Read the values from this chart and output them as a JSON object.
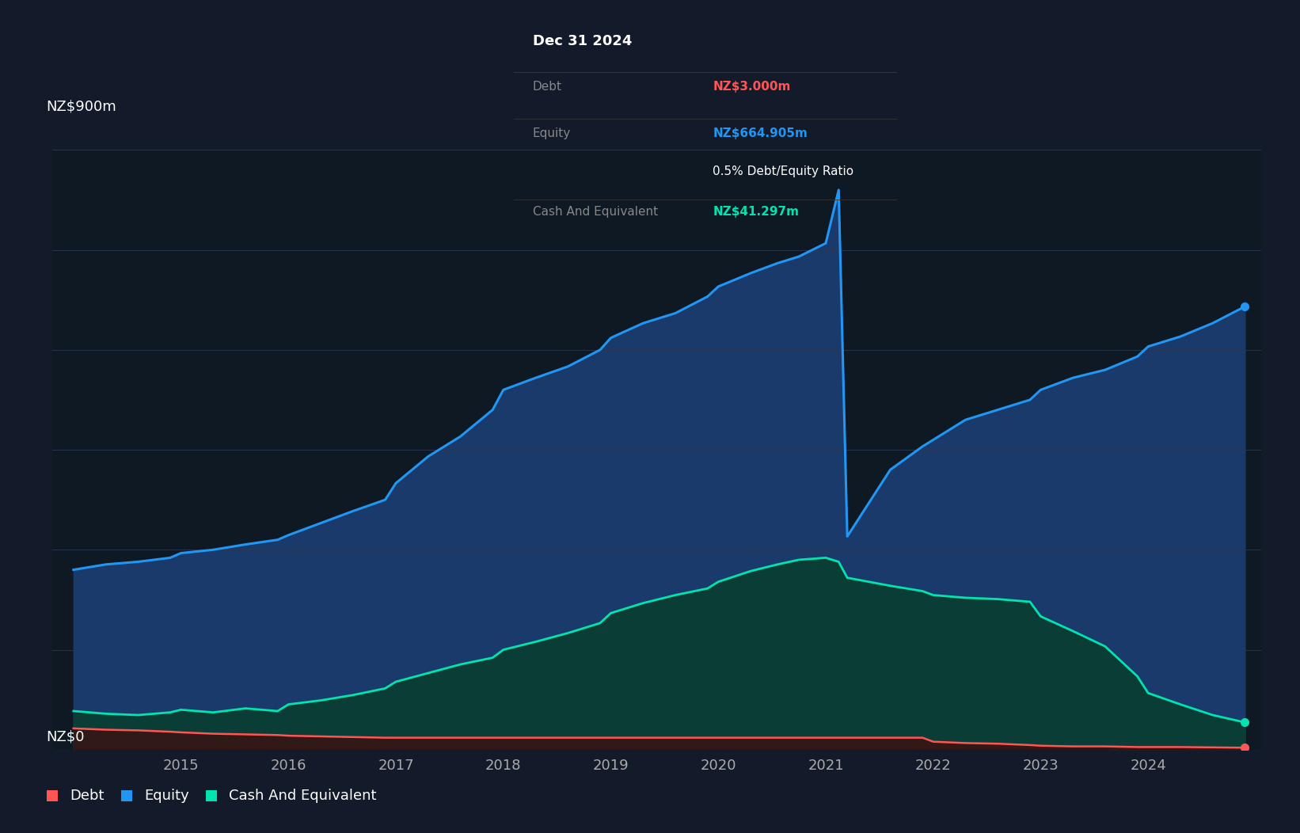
{
  "bg_color": "#131b2a",
  "plot_bg_color": "#0f1923",
  "grid_color": "#2a3550",
  "equity_color": "#2196f3",
  "equity_fill_color": "#1a3a6b",
  "cash_color": "#00e5b0",
  "cash_fill_color": "#0a3d35",
  "debt_color": "#ff5555",
  "debt_fill_color": "#3a1010",
  "text_color": "#ffffff",
  "axis_label_color": "#aaaaaa",
  "tooltip_bg": "#050a10",
  "ylabel_top": "NZ$900m",
  "ylabel_zero": "NZ$0",
  "ylim": [
    0,
    900
  ],
  "years_x": [
    2014.0,
    2014.3,
    2014.6,
    2014.9,
    2015.0,
    2015.3,
    2015.6,
    2015.9,
    2016.0,
    2016.3,
    2016.6,
    2016.9,
    2017.0,
    2017.3,
    2017.6,
    2017.9,
    2018.0,
    2018.3,
    2018.6,
    2018.9,
    2019.0,
    2019.3,
    2019.6,
    2019.9,
    2020.0,
    2020.3,
    2020.55,
    2020.75,
    2021.0,
    2021.12,
    2021.2,
    2021.4,
    2021.6,
    2021.9,
    2022.0,
    2022.3,
    2022.6,
    2022.9,
    2023.0,
    2023.3,
    2023.6,
    2023.9,
    2024.0,
    2024.3,
    2024.6,
    2024.9
  ],
  "equity": [
    270,
    278,
    282,
    288,
    295,
    300,
    308,
    315,
    322,
    340,
    358,
    375,
    400,
    440,
    470,
    510,
    540,
    558,
    575,
    600,
    618,
    640,
    655,
    680,
    695,
    715,
    730,
    740,
    760,
    840,
    320,
    370,
    420,
    455,
    465,
    495,
    510,
    525,
    540,
    558,
    570,
    590,
    605,
    620,
    640,
    665
  ],
  "cash": [
    58,
    54,
    52,
    56,
    60,
    56,
    62,
    58,
    68,
    74,
    82,
    92,
    102,
    115,
    128,
    138,
    150,
    162,
    175,
    190,
    205,
    220,
    232,
    242,
    252,
    268,
    278,
    285,
    288,
    282,
    258,
    252,
    246,
    238,
    232,
    228,
    226,
    222,
    200,
    178,
    155,
    110,
    85,
    68,
    52,
    41
  ],
  "debt": [
    32,
    30,
    29,
    27,
    26,
    24,
    23,
    22,
    21,
    20,
    19,
    18,
    18,
    18,
    18,
    18,
    18,
    18,
    18,
    18,
    18,
    18,
    18,
    18,
    18,
    18,
    18,
    18,
    18,
    18,
    18,
    18,
    18,
    18,
    12,
    10,
    9,
    7,
    6,
    5,
    5,
    4,
    4,
    4,
    3.5,
    3
  ],
  "xtick_labels": [
    "2015",
    "2016",
    "2017",
    "2018",
    "2019",
    "2020",
    "2021",
    "2022",
    "2023",
    "2024"
  ],
  "xtick_positions": [
    2015,
    2016,
    2017,
    2018,
    2019,
    2020,
    2021,
    2022,
    2023,
    2024
  ],
  "tooltip_date": "Dec 31 2024",
  "tooltip_debt_label": "Debt",
  "tooltip_debt_value": "NZ$3.000m",
  "tooltip_equity_label": "Equity",
  "tooltip_equity_value": "NZ$664.905m",
  "tooltip_ratio": "0.5% Debt/Equity Ratio",
  "tooltip_cash_label": "Cash And Equivalent",
  "tooltip_cash_value": "NZ$41.297m",
  "legend_items": [
    "Debt",
    "Equity",
    "Cash And Equivalent"
  ],
  "legend_colors": [
    "#ff5555",
    "#2196f3",
    "#00e5b0"
  ]
}
